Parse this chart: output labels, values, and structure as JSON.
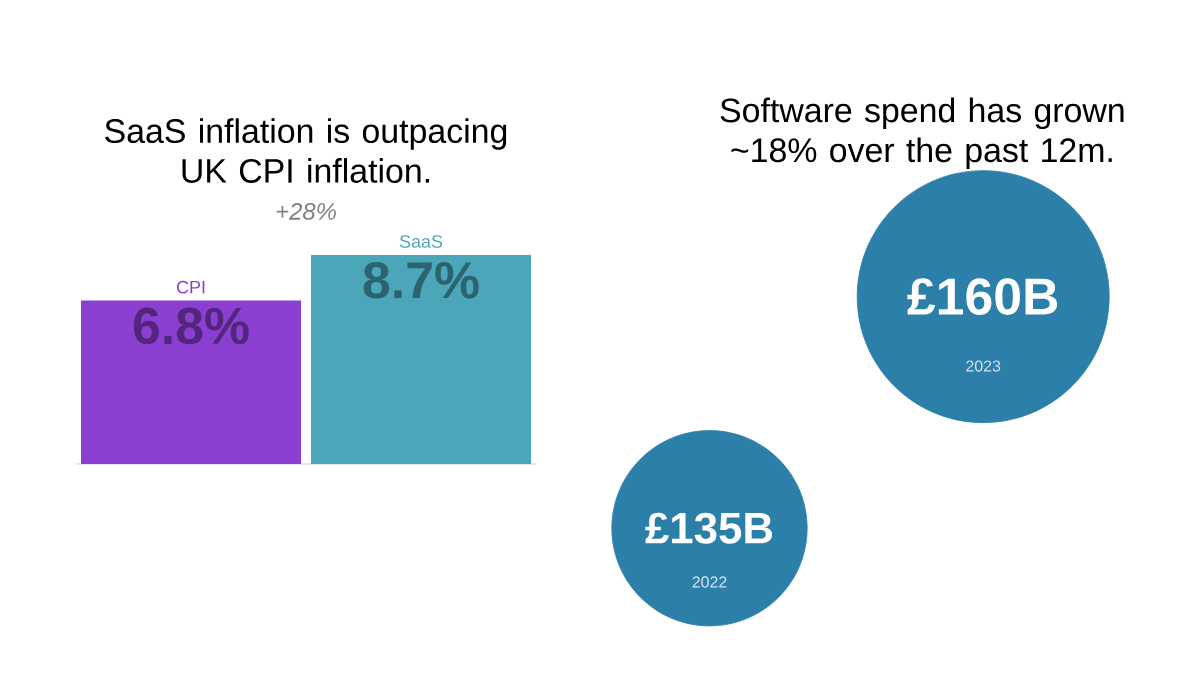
{
  "chart_data": [
    {
      "type": "bar",
      "title": "SaaS inflation is outpacing UK CPI inflation.",
      "categories": [
        "CPI",
        "SaaS"
      ],
      "values": [
        6.8,
        8.7
      ],
      "value_labels": [
        "6.8%",
        "8.7%"
      ],
      "colors": [
        "#8a3fd0",
        "#4aa6b8"
      ],
      "annotations": [
        "+28%"
      ]
    },
    {
      "type": "other",
      "title": "Software spend has grown ~18% over the past 12m.",
      "categories": [
        "2022",
        "2023"
      ],
      "values": [
        135,
        160
      ],
      "value_labels": [
        "£135B",
        "£160B"
      ],
      "color": "#2b7fa8"
    }
  ]
}
